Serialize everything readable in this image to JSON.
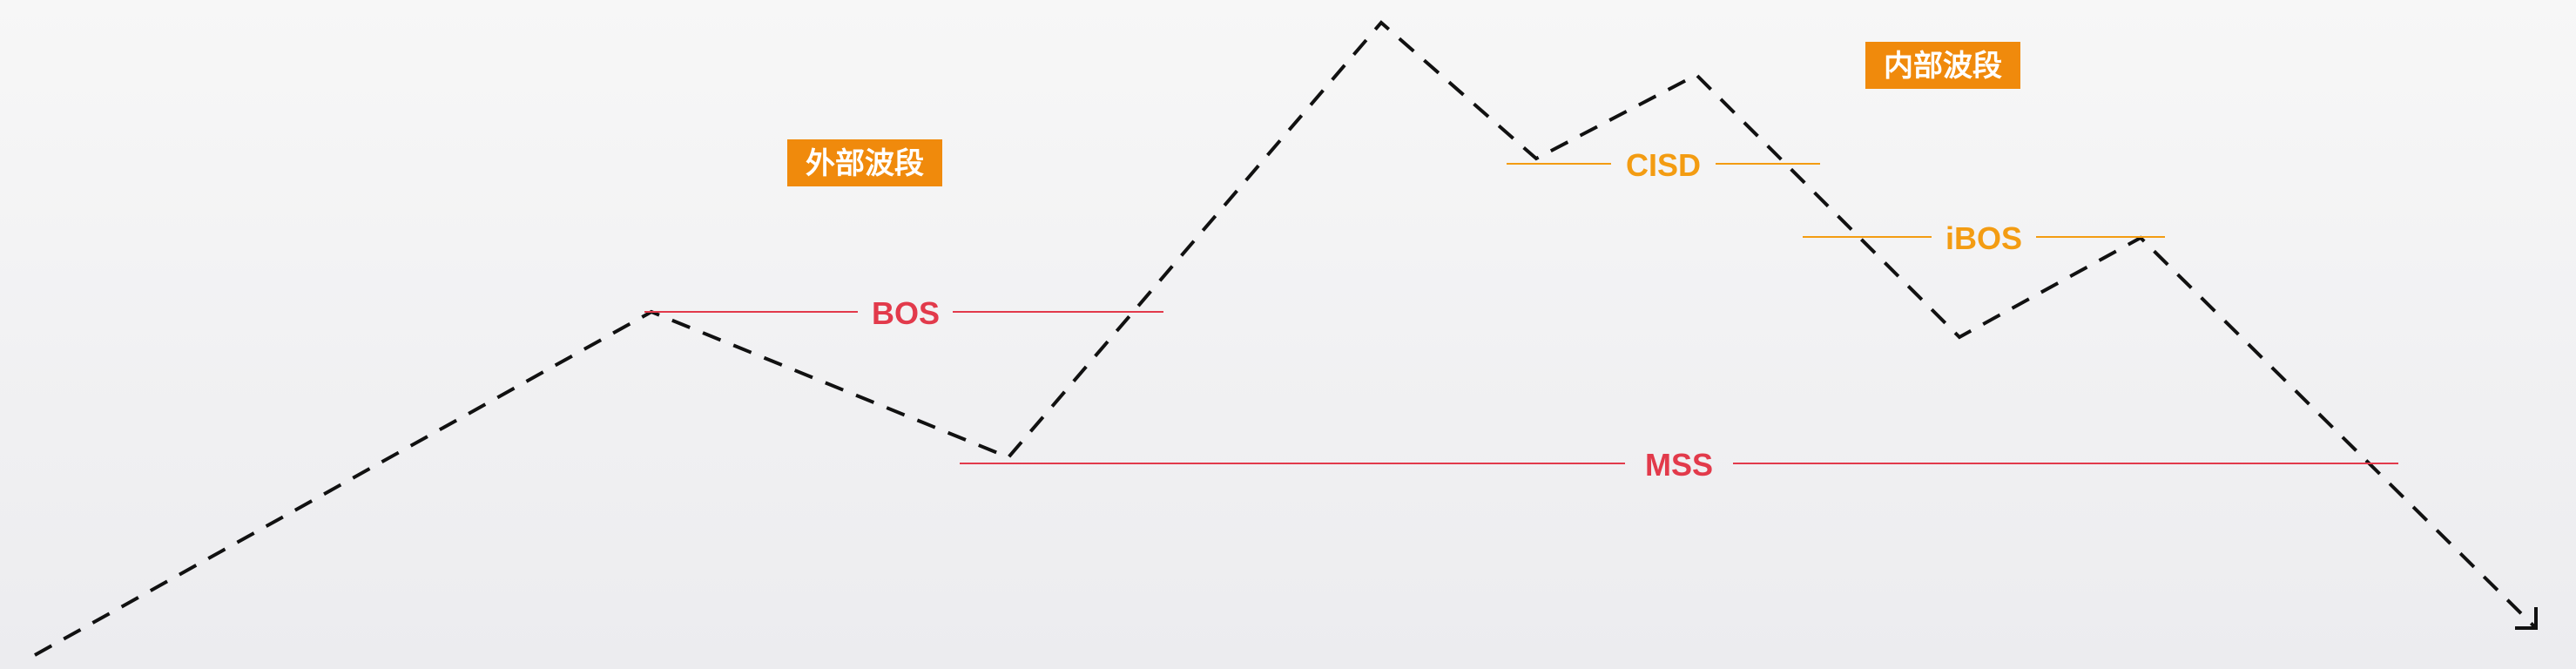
{
  "colors": {
    "background_top": "#f7f7f7",
    "background_bottom": "#ececef",
    "price_path": "#111111",
    "structure_break": "#e23a4b",
    "internal_break": "#f39c12",
    "swing_label_bg": "#f08a0c",
    "swing_label_text": "#ffffff"
  },
  "swing_labels": {
    "external": "外部波段",
    "internal": "内部波段"
  },
  "levels": {
    "bos": "BOS",
    "mss": "MSS",
    "cisd": "CISD",
    "ibos": "iBOS"
  }
}
